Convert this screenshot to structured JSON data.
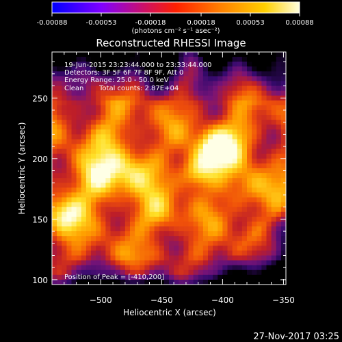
{
  "chart_data": {
    "type": "heatmap",
    "title": "Reconstructed RHESSI Image",
    "colorbar": {
      "ticks": [
        "-0.00088",
        "-0.00053",
        "-0.00018",
        "0.00018",
        "0.00053",
        "0.00088"
      ],
      "tick_values": [
        -0.00088,
        -0.00053,
        -0.00018,
        0.00018,
        0.00053,
        0.00088
      ],
      "range": [
        -0.00088,
        0.00088
      ],
      "units_label": "(photons cm⁻² s⁻¹ asec⁻²)",
      "colormap": [
        "#000000",
        "#3030ff",
        "#a020f0",
        "#e03030",
        "#ff8000",
        "#ffd000",
        "#ffffff"
      ]
    },
    "xlabel": "Heliocentric X (arcsec)",
    "ylabel": "Heliocentric Y (arcsec)",
    "xlim": [
      -540,
      -348
    ],
    "ylim": [
      96,
      288
    ],
    "xticks": [
      -500,
      -450,
      -400,
      -350
    ],
    "xtick_labels": [
      "−500",
      "−450",
      "−400",
      "−350"
    ],
    "yticks": [
      100,
      150,
      200,
      250
    ],
    "ytick_labels": [
      "100",
      "150",
      "200",
      "250"
    ],
    "annotations": {
      "time_range": "19-Jun-2015 23:23:44.000 to 23:33:44.000",
      "detectors": "Detectors: 3F 5F 6F 7F 8F 9F, Att 0",
      "energy_range": "Energy Range: 25.0 - 50.0 keV",
      "method": "Clean",
      "total_counts": "Total counts: 2.87E+04",
      "peak_position": "Position of Peak = [-410,200]"
    },
    "peak": {
      "x": -410,
      "y": 200
    }
  },
  "footer": {
    "date": "27-Nov-2017 03:25"
  }
}
